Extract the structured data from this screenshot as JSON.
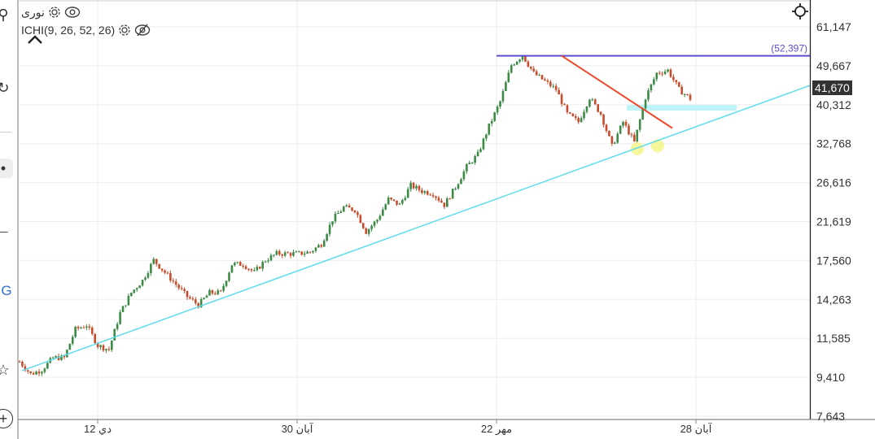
{
  "legend": {
    "symbol": "نوری",
    "indicator": "ICHI(9, 26, 52, 26)"
  },
  "icons": {
    "settings": "gear-icon",
    "visible": "eye-icon",
    "hidden": "eye-off-icon",
    "collapse": "chevron-up-icon",
    "crosshair": "crosshair-icon",
    "toolbar": [
      "indicator-icon",
      "drawing-icon",
      "undo-icon",
      "cursor-icon",
      "line-tool-icon",
      "text-icon",
      "star-icon",
      "add-icon"
    ]
  },
  "toolbar_text": "G",
  "current_price": "41,670",
  "colors": {
    "up_candle": "#3c8a46",
    "down_candle": "#c84b2c",
    "support_line": "#5fdcec",
    "resistance_line": "#5b4fd0",
    "downtrend_line": "#ee4a2a",
    "zone": "#aef0f6",
    "highlight": "#f3f47a"
  },
  "chart_data": {
    "type": "candlestick",
    "y_scale": "log",
    "ylim": [
      7643,
      61147
    ],
    "y_ticks": [
      "61,147",
      "49,667",
      "40,312",
      "32,768",
      "26,616",
      "21,619",
      "17,560",
      "14,263",
      "11,585",
      "9,410",
      "7,643"
    ],
    "x_ticks": [
      "12 دي",
      "30 آبان",
      "22 مهر",
      "28 آبان"
    ],
    "grid": true,
    "closes": [
      10226,
      9577,
      9790,
      10448,
      10448,
      12161,
      12427,
      11150,
      10911,
      13265,
      14785,
      15780,
      17590,
      16478,
      15441,
      14466,
      13852,
      14785,
      14785,
      17212,
      17212,
      16478,
      17590,
      18210,
      18210,
      18210,
      18370,
      19185,
      21853,
      23320,
      23022,
      20475,
      21853,
      24358,
      23630,
      26222,
      25439,
      25108,
      23630,
      25995,
      28976,
      30924,
      36000,
      41012,
      49855,
      52523,
      47739,
      45713,
      43771,
      38421,
      36793,
      41907,
      38421,
      32299,
      36793,
      33002,
      41907,
      47739,
      48500,
      43771,
      41670
    ],
    "drawings": {
      "horizontal_line": {
        "label": "(52,397)",
        "price": 52397
      },
      "support_trendline": {
        "from_price": 9750,
        "to_price": 44700
      },
      "downtrend_line": {
        "from_price": 52397,
        "to_price": 35600
      },
      "zone": {
        "top": 40300,
        "bottom": 39100
      },
      "highlights": [
        31900,
        32400
      ]
    }
  }
}
